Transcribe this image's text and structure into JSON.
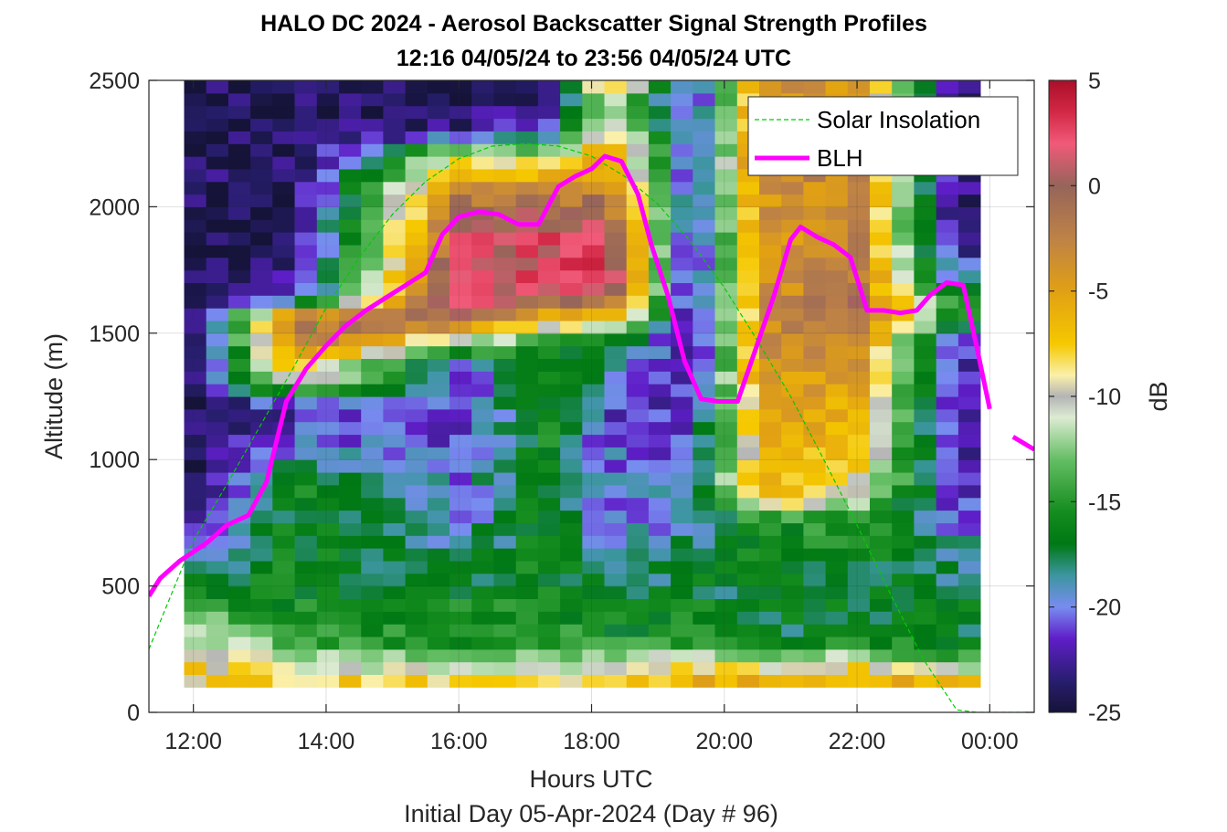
{
  "chart_data": {
    "type": "heatmap",
    "title": "HALO DC 2024 - Aerosol Backscatter Signal Strength Profiles",
    "subtitle": "12:16 04/05/24 to 23:56 04/05/24  UTC",
    "xlabel": "Hours UTC",
    "xlabel2": "Initial Day 05-Apr-2024 (Day # 96)",
    "ylabel": "Altitude (m)",
    "colorbar_label": "dB",
    "x_ticks": [
      "12:00",
      "14:00",
      "16:00",
      "18:00",
      "20:00",
      "22:00",
      "00:00"
    ],
    "x_tick_hours": [
      12,
      14,
      16,
      18,
      20,
      22,
      24
    ],
    "xlim_hours": [
      11.33,
      24.67
    ],
    "y_ticks": [
      "0",
      "500",
      "1000",
      "1500",
      "2000",
      "2500"
    ],
    "ylim": [
      0,
      2500
    ],
    "colorbar_ticks": [
      "5",
      "0",
      "-5",
      "-10",
      "-15",
      "-20",
      "-25"
    ],
    "clim": [
      -25,
      5
    ],
    "grid": true,
    "legend_position": "top-right",
    "heatmap": {
      "x_start_hour": 12.0,
      "x_step_hours": 0.3333,
      "y_start_m": 100,
      "y_step_m": 50,
      "note_rows": "rows are altitude bins from 100 m to 2500 m; values in dB",
      "keyframes": [
        {
          "hour": 12.0,
          "profile": [
            -8,
            -8,
            -9,
            -11,
            -12,
            -13,
            -14,
            -16,
            -17,
            -18,
            -20,
            -21,
            -22,
            -22,
            -23,
            -24,
            -24,
            -24,
            -24,
            -24,
            -24,
            -24,
            -24,
            -24,
            -24,
            -24,
            -24,
            -24,
            -24,
            -24,
            -24,
            -24,
            -24,
            -24,
            -24,
            -24,
            -24,
            -24,
            -24,
            -24,
            -24,
            -24,
            -24,
            -24,
            -24,
            -24,
            -24,
            -24
          ]
        },
        {
          "hour": 13.5,
          "profile": [
            -8,
            -10,
            -12,
            -14,
            -15,
            -16,
            -16,
            -16,
            -16,
            -16,
            -16,
            -16,
            -16,
            -16,
            -16,
            -16,
            -17,
            -18,
            -19,
            -20,
            -21,
            -22,
            -20,
            -14,
            -9,
            -7,
            -4,
            -2,
            -1,
            -4,
            -18,
            -22,
            -23,
            -24,
            -24,
            -24,
            -24,
            -24,
            -24,
            -24,
            -24,
            -24,
            -24,
            -24,
            -24,
            -24,
            -24,
            -24
          ]
        },
        {
          "hour": 16.0,
          "profile": [
            -8,
            -11,
            -13,
            -15,
            -16,
            -16,
            -16,
            -17,
            -17,
            -18,
            -18,
            -19,
            -19,
            -20,
            -20,
            -20,
            -20,
            -20,
            -21,
            -21,
            -21,
            -21,
            -21,
            -21,
            -21,
            -20,
            -15,
            -10,
            -4,
            0,
            2,
            2,
            2,
            2,
            1,
            1,
            0,
            -1,
            -2,
            -4,
            -6,
            -8,
            -12,
            -20,
            -23,
            -24,
            -24,
            -24
          ]
        },
        {
          "hour": 17.3,
          "profile": [
            -8,
            -10,
            -12,
            -14,
            -15,
            -16,
            -16,
            -16,
            -16,
            -16,
            -16,
            -16,
            -16,
            -16,
            -16,
            -16,
            -16,
            -16,
            -16,
            -16,
            -16,
            -16,
            -16,
            -16,
            -16,
            -16,
            -15,
            -14,
            -10,
            -5,
            0,
            2,
            2,
            2,
            2,
            2,
            1,
            0,
            -2,
            -4,
            -6,
            -9,
            -14,
            -18,
            -20,
            -22,
            -23,
            -23
          ]
        },
        {
          "hour": 18.2,
          "profile": [
            -9,
            -11,
            -13,
            -15,
            -16,
            -16,
            -17,
            -17,
            -18,
            -18,
            -19,
            -19,
            -20,
            -20,
            -20,
            -20,
            -20,
            -20,
            -20,
            -21,
            -21,
            -21,
            -21,
            -20,
            -19,
            -18,
            -17,
            -16,
            -10,
            -6,
            -2,
            1,
            3,
            4,
            3,
            2,
            1,
            0,
            -1,
            -2,
            -4,
            -5,
            -6,
            -7,
            -8,
            -10,
            -9,
            -5
          ]
        },
        {
          "hour": 19.5,
          "profile": [
            -6,
            -8,
            -11,
            -14,
            -16,
            -16,
            -16,
            -17,
            -17,
            -17,
            -18,
            -18,
            -19,
            -19,
            -20,
            -20,
            -20,
            -21,
            -21,
            -21,
            -21,
            -22,
            -22,
            -22,
            -22,
            -23,
            -23,
            -23,
            -23,
            -23,
            -23,
            -23,
            -23,
            -23,
            -23,
            -23,
            -22,
            -22,
            -22,
            -22,
            -22,
            -21,
            -21,
            -22,
            -22,
            -22,
            -23,
            -23
          ]
        },
        {
          "hour": 20.5,
          "profile": [
            -6,
            -10,
            -14,
            -16,
            -17,
            -17,
            -17,
            -17,
            -17,
            -17,
            -16,
            -16,
            -16,
            -14,
            -9,
            -7,
            -6,
            -6,
            -6,
            -6,
            -5,
            -5,
            -5,
            -5,
            -4,
            -4,
            -4,
            -4,
            -4,
            -4,
            -4,
            -4,
            -4,
            -4,
            -4,
            -4,
            -4,
            -4,
            -4,
            -4,
            -3,
            -3,
            -3,
            -4,
            -4,
            -4,
            -4,
            -4
          ]
        },
        {
          "hour": 22.0,
          "profile": [
            -6,
            -8,
            -12,
            -16,
            -17,
            -17,
            -17,
            -17,
            -17,
            -17,
            -16,
            -16,
            -15,
            -14,
            -12,
            -10,
            -9,
            -8,
            -7,
            -7,
            -6,
            -6,
            -6,
            -5,
            -5,
            -4,
            -3,
            -2,
            -1,
            -1,
            -1,
            -2,
            -2,
            -3,
            -3,
            -3,
            -3,
            -3,
            -3,
            -3,
            -3,
            -3,
            -3,
            -3,
            -4,
            -4,
            -4,
            -4
          ]
        },
        {
          "hour": 23.4,
          "profile": [
            -7,
            -12,
            -15,
            -16,
            -17,
            -17,
            -17,
            -17,
            -18,
            -18,
            -19,
            -19,
            -20,
            -20,
            -21,
            -21,
            -21,
            -22,
            -22,
            -22,
            -22,
            -22,
            -22,
            -22,
            -22,
            -22,
            -22,
            -22,
            -17,
            -15,
            -16,
            -18,
            -20,
            -21,
            -22,
            -23,
            -23,
            -23,
            -23,
            -23,
            -23,
            -23,
            -23,
            -23,
            -23,
            -23,
            -23,
            -23
          ]
        }
      ]
    },
    "series": [
      {
        "name": "Solar Insolation",
        "style": "dashed",
        "color": "#00cc00",
        "x_hours": [
          11.33,
          12.0,
          12.5,
          13.0,
          13.5,
          14.0,
          14.5,
          15.0,
          15.5,
          16.0,
          16.5,
          17.0,
          17.5,
          18.0,
          18.5,
          19.0,
          19.5,
          20.0,
          20.5,
          21.0,
          21.5,
          22.0,
          22.5,
          23.0,
          23.5,
          23.8,
          24.67
        ],
        "y": [
          250,
          680,
          900,
          1130,
          1360,
          1600,
          1800,
          1970,
          2100,
          2190,
          2240,
          2250,
          2240,
          2200,
          2120,
          2010,
          1860,
          1680,
          1470,
          1250,
          1000,
          740,
          470,
          210,
          10,
          0,
          0
        ]
      },
      {
        "name": "BLH",
        "style": "solid",
        "color": "#ff00ff",
        "x_hours": [
          11.33,
          11.5,
          11.8,
          12.2,
          12.5,
          12.83,
          13.1,
          13.4,
          13.7,
          14.0,
          14.3,
          14.6,
          14.9,
          15.2,
          15.5,
          15.75,
          16.0,
          16.3,
          16.6,
          16.9,
          17.2,
          17.5,
          17.75,
          18.0,
          18.2,
          18.45,
          18.7,
          18.9,
          19.15,
          19.4,
          19.65,
          19.9,
          20.2,
          20.45,
          20.75,
          21.0,
          21.15,
          21.4,
          21.65,
          21.9,
          22.15,
          22.4,
          22.65,
          22.9,
          23.1,
          23.35,
          23.6,
          23.8,
          24.0
        ],
        "y": [
          460,
          530,
          600,
          670,
          740,
          780,
          910,
          1230,
          1360,
          1450,
          1530,
          1590,
          1640,
          1690,
          1740,
          1890,
          1960,
          1980,
          1970,
          1930,
          1930,
          2080,
          2120,
          2150,
          2200,
          2180,
          2050,
          1850,
          1650,
          1390,
          1240,
          1230,
          1230,
          1420,
          1650,
          1870,
          1920,
          1880,
          1850,
          1800,
          1590,
          1590,
          1580,
          1590,
          1650,
          1700,
          1690,
          1450,
          1200
        ],
        "extra_segment": {
          "x_hours": [
            24.35,
            24.67
          ],
          "y": [
            1090,
            1040
          ]
        }
      }
    ]
  }
}
